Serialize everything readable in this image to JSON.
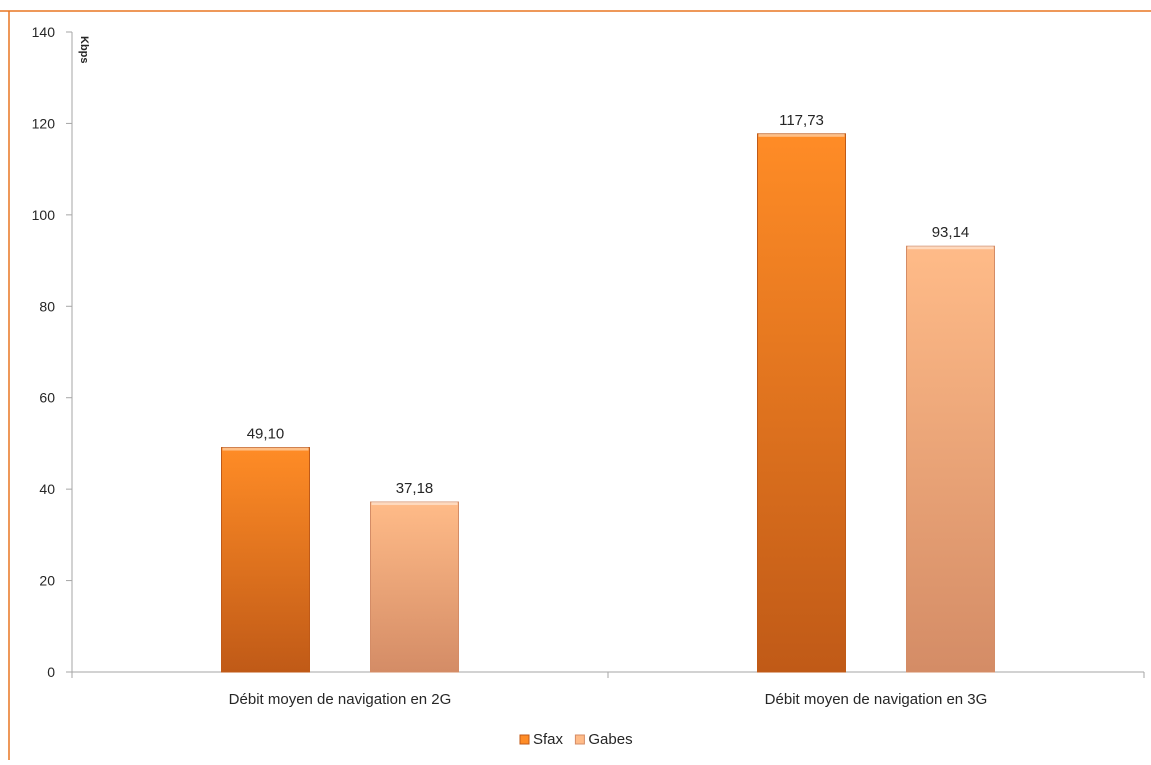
{
  "colors": {
    "frame": "#E87722",
    "axis": "#A6A6A6",
    "text": "#262626",
    "sfax_top": "#FF8C26",
    "sfax_bottom": "#C05A17",
    "gabes_top": "#FFBB88",
    "gabes_bottom": "#D48C66"
  },
  "chart_data": {
    "type": "bar",
    "categories": [
      "Débit moyen de navigation en 2G",
      "Débit moyen de navigation en 3G"
    ],
    "series": [
      {
        "name": "Sfax",
        "values": [
          49.1,
          117.73
        ],
        "labels": [
          "49,10",
          "117,73"
        ]
      },
      {
        "name": "Gabes",
        "values": [
          37.18,
          93.14
        ],
        "labels": [
          "37,18",
          "93,14"
        ]
      }
    ],
    "title": "",
    "xlabel": "",
    "ylabel": "Kbps",
    "ylim": [
      0,
      140
    ],
    "yticks": [
      0,
      20,
      40,
      60,
      80,
      100,
      120,
      140
    ],
    "grid": false,
    "legend_position": "bottom"
  }
}
